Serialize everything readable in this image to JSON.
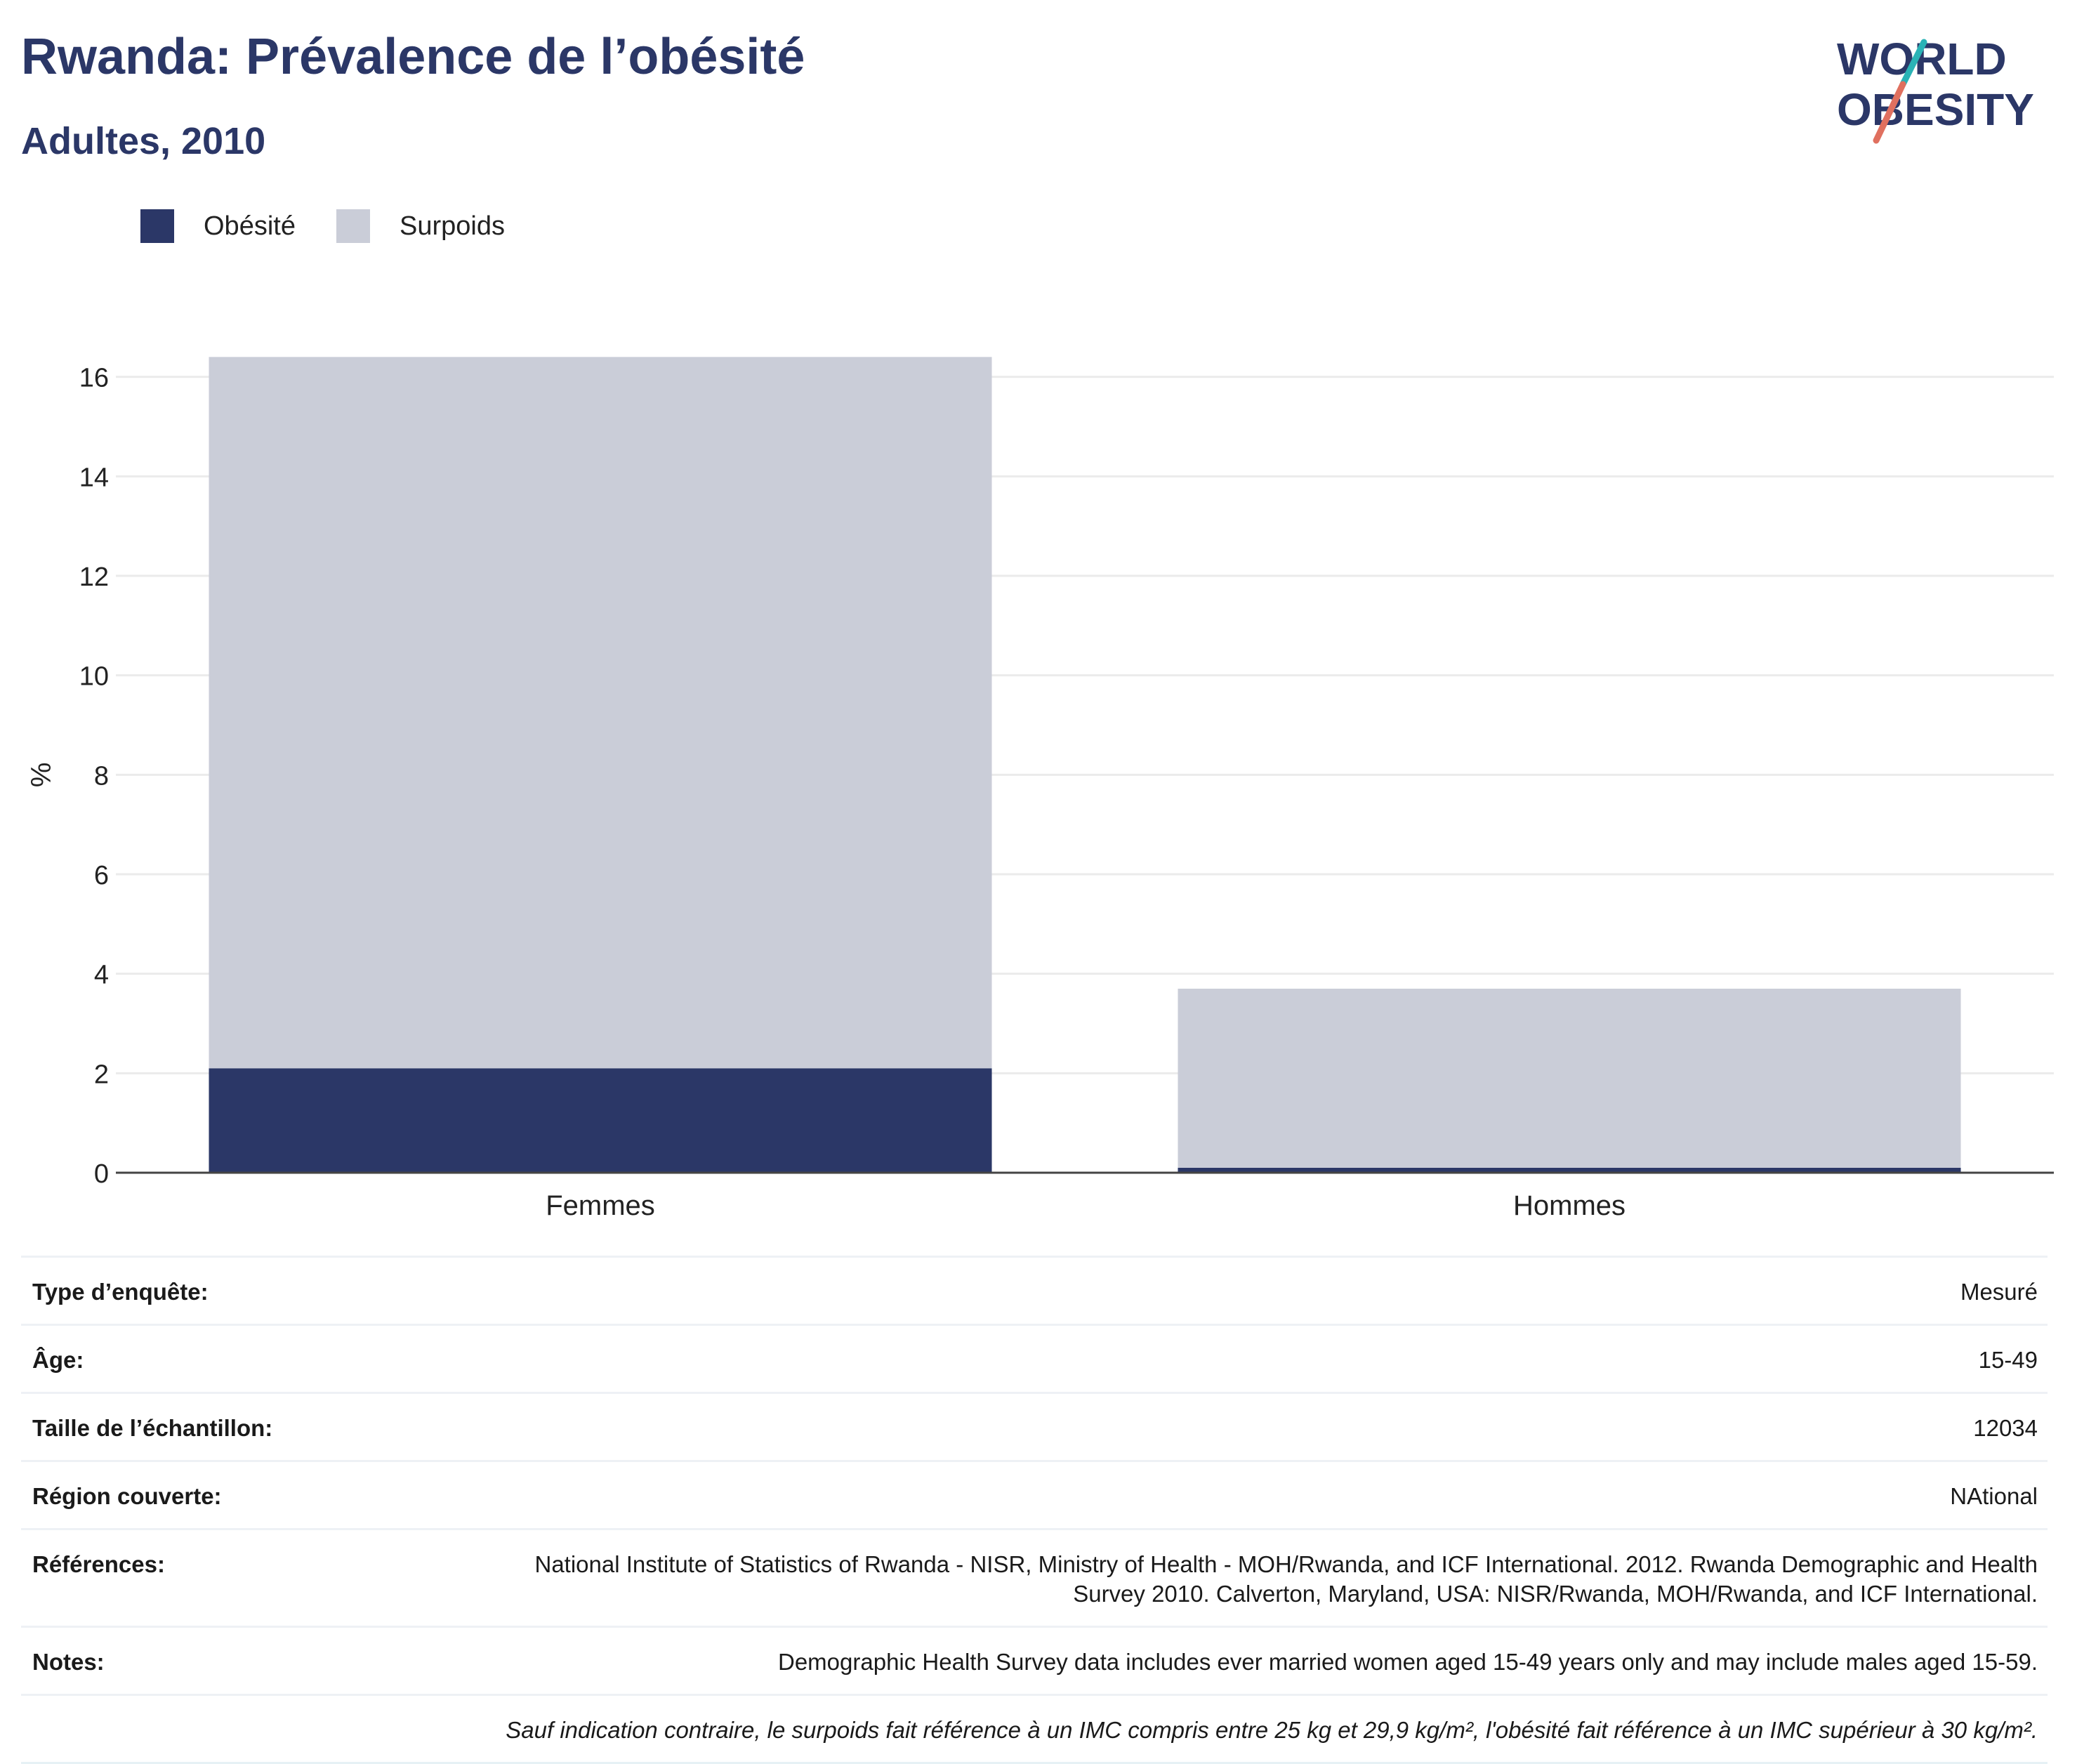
{
  "header": {
    "title": "Rwanda: Prévalence de l’obésité",
    "subtitle": "Adultes, 2010",
    "logo_line1": "WORLD",
    "logo_line2": "OBESITY"
  },
  "legend": {
    "items": [
      {
        "label": "Obésité",
        "color": "#2b3767"
      },
      {
        "label": "Surpoids",
        "color": "#cacdd8"
      }
    ]
  },
  "chart_data": {
    "type": "bar",
    "stacked": true,
    "categories": [
      "Femmes",
      "Hommes"
    ],
    "series": [
      {
        "name": "Obésité",
        "color": "#2b3767",
        "values": [
          2.1,
          0.1
        ]
      },
      {
        "name": "Surpoids",
        "color": "#cacdd8",
        "values": [
          14.3,
          3.6
        ]
      }
    ],
    "ylabel": "%",
    "ylim": [
      0,
      16.8
    ],
    "yticks": [
      0,
      2,
      4,
      6,
      8,
      10,
      12,
      14,
      16
    ],
    "grid": true,
    "legend_position": "top-left"
  },
  "info": {
    "rows": [
      {
        "label": "Type d’enquête:",
        "value": "Mesuré"
      },
      {
        "label": "Âge:",
        "value": "15-49"
      },
      {
        "label": "Taille de l’échantillon:",
        "value": "12034"
      },
      {
        "label": "Région couverte:",
        "value": "NAtional"
      },
      {
        "label": "Références:",
        "value": "National Institute of Statistics of Rwanda - NISR, Ministry of Health - MOH/Rwanda, and ICF International. 2012. Rwanda Demographic and Health Survey 2010. Calverton, Maryland, USA: NISR/Rwanda, MOH/Rwanda, and ICF International."
      },
      {
        "label": "Notes:",
        "value": "Demographic Health Survey data includes ever married women aged 15-49 years only and may include males aged 15-59."
      }
    ],
    "footnote": "Sauf indication contraire, le surpoids fait référence à un IMC compris entre 25 kg et 29,9 kg/m², l'obésité fait référence à un IMC supérieur à 30 kg/m²."
  }
}
